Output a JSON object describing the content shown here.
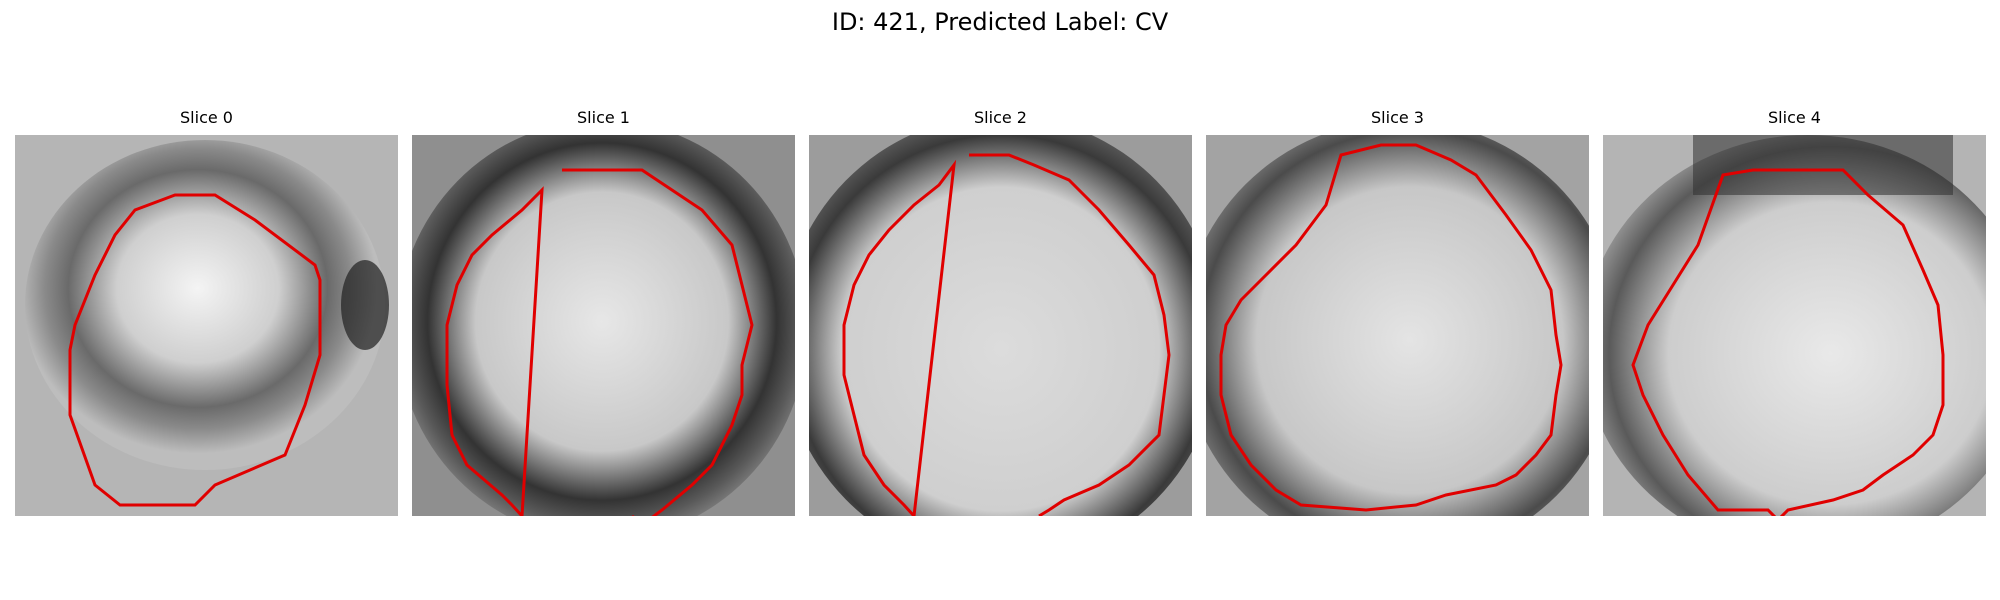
{
  "figure": {
    "title": "ID: 421, Predicted Label: CV"
  },
  "slices": [
    {
      "title": "Slice 0"
    },
    {
      "title": "Slice 1"
    },
    {
      "title": "Slice 2"
    },
    {
      "title": "Slice 3"
    },
    {
      "title": "Slice 4"
    }
  ],
  "colors": {
    "background": "#ffffff",
    "contour": "#e00000"
  }
}
